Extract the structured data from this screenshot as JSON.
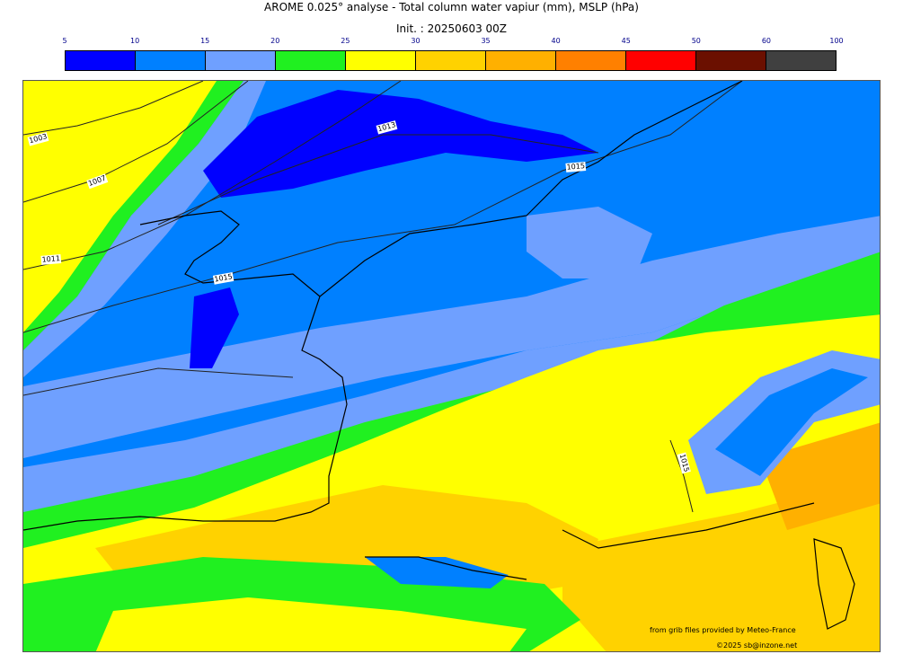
{
  "title": "AROME 0.025° analyse - Total column water vapiur (mm), MSLP (hPa)",
  "subtitle": "Init. : 20250603 00Z",
  "colorbar": {
    "ticks": [
      "5",
      "10",
      "15",
      "20",
      "25",
      "30",
      "35",
      "40",
      "45",
      "50",
      "60",
      "100"
    ],
    "colors": [
      "#0000ff",
      "#0080ff",
      "#6fa0ff",
      "#20f020",
      "#ffff00",
      "#ffd200",
      "#ffb000",
      "#ff8000",
      "#ff0000",
      "#6b1000",
      "#404040"
    ]
  },
  "isobars": [
    "1003",
    "1007",
    "1011",
    "1015",
    "1013",
    "1015",
    "1015"
  ],
  "credits": {
    "source": "from grib files provided by Meteo-France",
    "copyright": "©2025 sb@inzone.net"
  }
}
